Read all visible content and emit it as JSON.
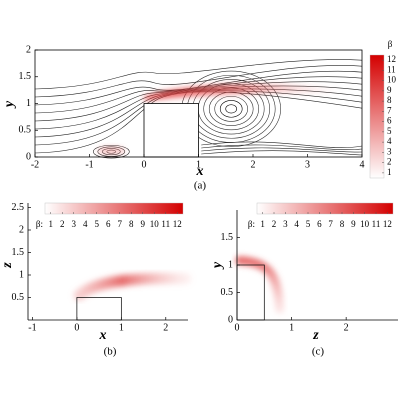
{
  "chart_data": [
    {
      "type": "contour",
      "caption": "(a)",
      "x_label": "x",
      "y_label": "y",
      "xlim": [
        -2,
        4
      ],
      "ylim": [
        0,
        2
      ],
      "xticks": [
        -2,
        -1,
        0,
        1,
        2,
        3,
        4
      ],
      "yticks": [
        0,
        0.5,
        1,
        1.5,
        2
      ],
      "colorbar": {
        "title": "β",
        "orientation": "vertical",
        "lim": [
          0.5,
          12.5
        ],
        "ticks": [
          1,
          2,
          3,
          4,
          5,
          6,
          7,
          8,
          9,
          10,
          11,
          12
        ],
        "colors": [
          "#ffffff",
          "#d40000"
        ]
      }
    },
    {
      "type": "contour",
      "caption": "(b)",
      "x_label": "x",
      "y_label": "z",
      "xlim": [
        -1.1,
        2.5
      ],
      "ylim": [
        0,
        2.6
      ],
      "xticks": [
        -1,
        0,
        1,
        2
      ],
      "yticks": [
        0.5,
        1,
        1.5,
        2,
        2.5
      ],
      "colorbar": {
        "title": "β:",
        "orientation": "horizontal",
        "lim": [
          0.5,
          12.5
        ],
        "ticks": [
          1,
          2,
          3,
          4,
          5,
          6,
          7,
          8,
          9,
          10,
          11,
          12
        ],
        "colors": [
          "#ffffff",
          "#d40000"
        ]
      }
    },
    {
      "type": "contour",
      "caption": "(c)",
      "x_label": "z",
      "y_label": "y",
      "xlim": [
        0,
        2.95
      ],
      "ylim": [
        0,
        2
      ],
      "xticks": [
        0,
        1,
        2
      ],
      "yticks": [
        0,
        0.5,
        1,
        1.5
      ],
      "colorbar": {
        "title": "β:",
        "orientation": "horizontal",
        "lim": [
          0.5,
          12.5
        ],
        "ticks": [
          1,
          2,
          3,
          4,
          5,
          6,
          7,
          8,
          9,
          10,
          11,
          12
        ],
        "colors": [
          "#ffffff",
          "#d40000"
        ]
      }
    }
  ]
}
